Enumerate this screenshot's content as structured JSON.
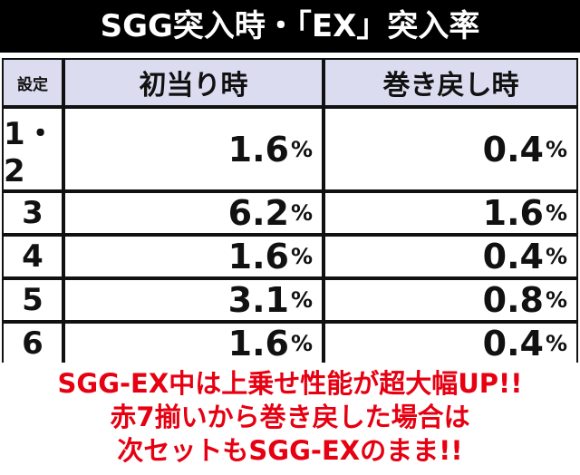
{
  "header": {
    "title": "SGG突入時・「EX」突入率"
  },
  "table": {
    "columns": [
      "設定",
      "初当り時",
      "巻き戻し時"
    ],
    "rows": [
      [
        "1・2",
        "1.6%",
        "0.4%"
      ],
      [
        "3",
        "6.2%",
        "1.6%"
      ],
      [
        "4",
        "1.6%",
        "0.4%"
      ],
      [
        "5",
        "3.1%",
        "0.8%"
      ],
      [
        "6",
        "1.6%",
        "0.4%"
      ]
    ]
  },
  "footer": {
    "lines": [
      "SGG-EX中は上乗せ性能が超大幅UP!!",
      "赤7揃いから巻き戻した場合は",
      "次セットもSGG-EXのまま!!"
    ]
  }
}
